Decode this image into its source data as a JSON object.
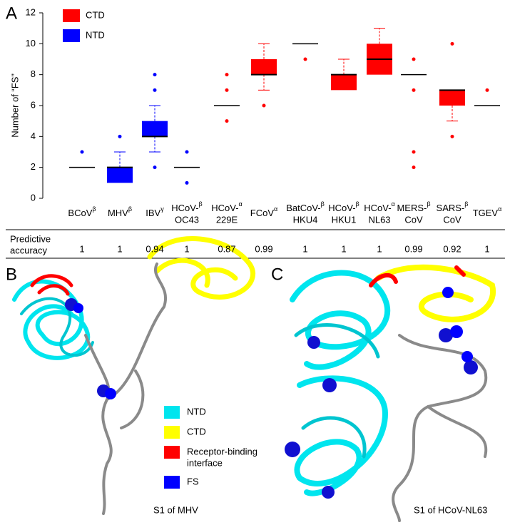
{
  "panel_labels": [
    "A",
    "B",
    "C"
  ],
  "chart_data": {
    "type": "box",
    "y_label": "Number of “FS”",
    "ylim": [
      0,
      12
    ],
    "yticks": [
      0,
      2,
      4,
      6,
      8,
      10,
      12
    ],
    "categories": [
      {
        "lines": [
          "BCoV"
        ],
        "sup": "β"
      },
      {
        "lines": [
          "MHV"
        ],
        "sup": "β"
      },
      {
        "lines": [
          "IBV"
        ],
        "sup": "γ"
      },
      {
        "lines": [
          "HCoV-",
          "OC43"
        ],
        "sup": "β"
      },
      {
        "lines": [
          "HCoV-",
          "229E"
        ],
        "sup": "α"
      },
      {
        "lines": [
          "FCoV"
        ],
        "sup": "α"
      },
      {
        "lines": [
          "BatCoV-",
          "HKU4"
        ],
        "sup": "β"
      },
      {
        "lines": [
          "HCoV-",
          "HKU1"
        ],
        "sup": "β"
      },
      {
        "lines": [
          "HCoV-",
          "NL63"
        ],
        "sup": "α"
      },
      {
        "lines": [
          "MERS-",
          "CoV"
        ],
        "sup": "β"
      },
      {
        "lines": [
          "SARS-",
          "CoV"
        ],
        "sup": "β"
      },
      {
        "lines": [
          "TGEV"
        ],
        "sup": "α"
      }
    ],
    "series": [
      {
        "name": "CTD",
        "color": "#ff0000",
        "boxes": [
          null,
          null,
          null,
          null,
          {
            "min": 6,
            "q1": 6,
            "median": 6,
            "q3": 6,
            "max": 6,
            "outliers": [
              8,
              7,
              5
            ]
          },
          {
            "min": 7,
            "q1": 8,
            "median": 8,
            "q3": 9,
            "max": 10,
            "outliers": [
              6
            ]
          },
          {
            "min": 10,
            "q1": 10,
            "median": 10,
            "q3": 10,
            "max": 10,
            "outliers": [
              9
            ]
          },
          {
            "min": 7,
            "q1": 7,
            "median": 8,
            "q3": 8,
            "max": 9,
            "outliers": []
          },
          {
            "min": 8,
            "q1": 8,
            "median": 9,
            "q3": 10,
            "max": 11,
            "outliers": []
          },
          {
            "min": 8,
            "q1": 8,
            "median": 8,
            "q3": 8,
            "max": 8,
            "outliers": [
              9,
              7,
              3,
              2
            ]
          },
          {
            "min": 5,
            "q1": 6,
            "median": 7,
            "q3": 7,
            "max": 7,
            "outliers": [
              10,
              4
            ]
          },
          {
            "min": 6,
            "q1": 6,
            "median": 6,
            "q3": 6,
            "max": 6,
            "outliers": [
              7
            ]
          }
        ]
      },
      {
        "name": "NTD",
        "color": "#0000ff",
        "boxes": [
          {
            "min": 2,
            "q1": 2,
            "median": 2,
            "q3": 2,
            "max": 2,
            "outliers": [
              3
            ]
          },
          {
            "min": 1,
            "q1": 1,
            "median": 2,
            "q3": 2,
            "max": 3,
            "outliers": [
              4
            ]
          },
          {
            "min": 3,
            "q1": 4,
            "median": 4,
            "q3": 5,
            "max": 6,
            "outliers": [
              2,
              7,
              8
            ]
          },
          {
            "min": 2,
            "q1": 2,
            "median": 2,
            "q3": 2,
            "max": 2,
            "outliers": [
              3,
              1
            ]
          },
          null,
          null,
          null,
          null,
          null,
          null,
          null,
          null
        ]
      }
    ]
  },
  "accuracy": {
    "row_label_lines": [
      "Predictive",
      "accuracy"
    ],
    "values": [
      1,
      1,
      0.94,
      1,
      0.87,
      0.99,
      1,
      1,
      1,
      0.99,
      0.92,
      1
    ]
  },
  "structure_legend": [
    {
      "lines": [
        "NTD"
      ],
      "color": "#00e5ee"
    },
    {
      "lines": [
        "CTD"
      ],
      "color": "#ffff00"
    },
    {
      "lines": [
        "Receptor-binding",
        "interface"
      ],
      "color": "#ff0000"
    },
    {
      "lines": [
        "FS"
      ],
      "color": "#0000ff"
    }
  ],
  "captions": [
    "S1 of MHV",
    "S1 of HCoV-NL63"
  ]
}
